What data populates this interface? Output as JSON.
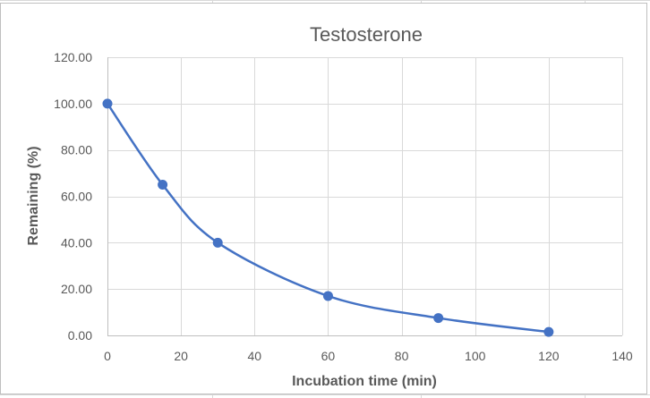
{
  "chart_data": {
    "type": "scatter",
    "title": "Testosterone",
    "xlabel": "Incubation time (min)",
    "ylabel": "Remaining (%)",
    "xlim": [
      0,
      140
    ],
    "ylim": [
      0,
      120
    ],
    "x_ticks": [
      "0",
      "20",
      "40",
      "60",
      "80",
      "100",
      "120",
      "140"
    ],
    "y_ticks": [
      "0.00",
      "20.00",
      "40.00",
      "60.00",
      "80.00",
      "100.00",
      "120.00"
    ],
    "grid": true,
    "smooth_line": true,
    "colors": {
      "series": "#4472c4"
    },
    "series": [
      {
        "x": [
          0,
          15,
          30,
          60,
          90,
          120
        ],
        "y": [
          100,
          65,
          40,
          17,
          7.5,
          1.5
        ]
      }
    ]
  }
}
